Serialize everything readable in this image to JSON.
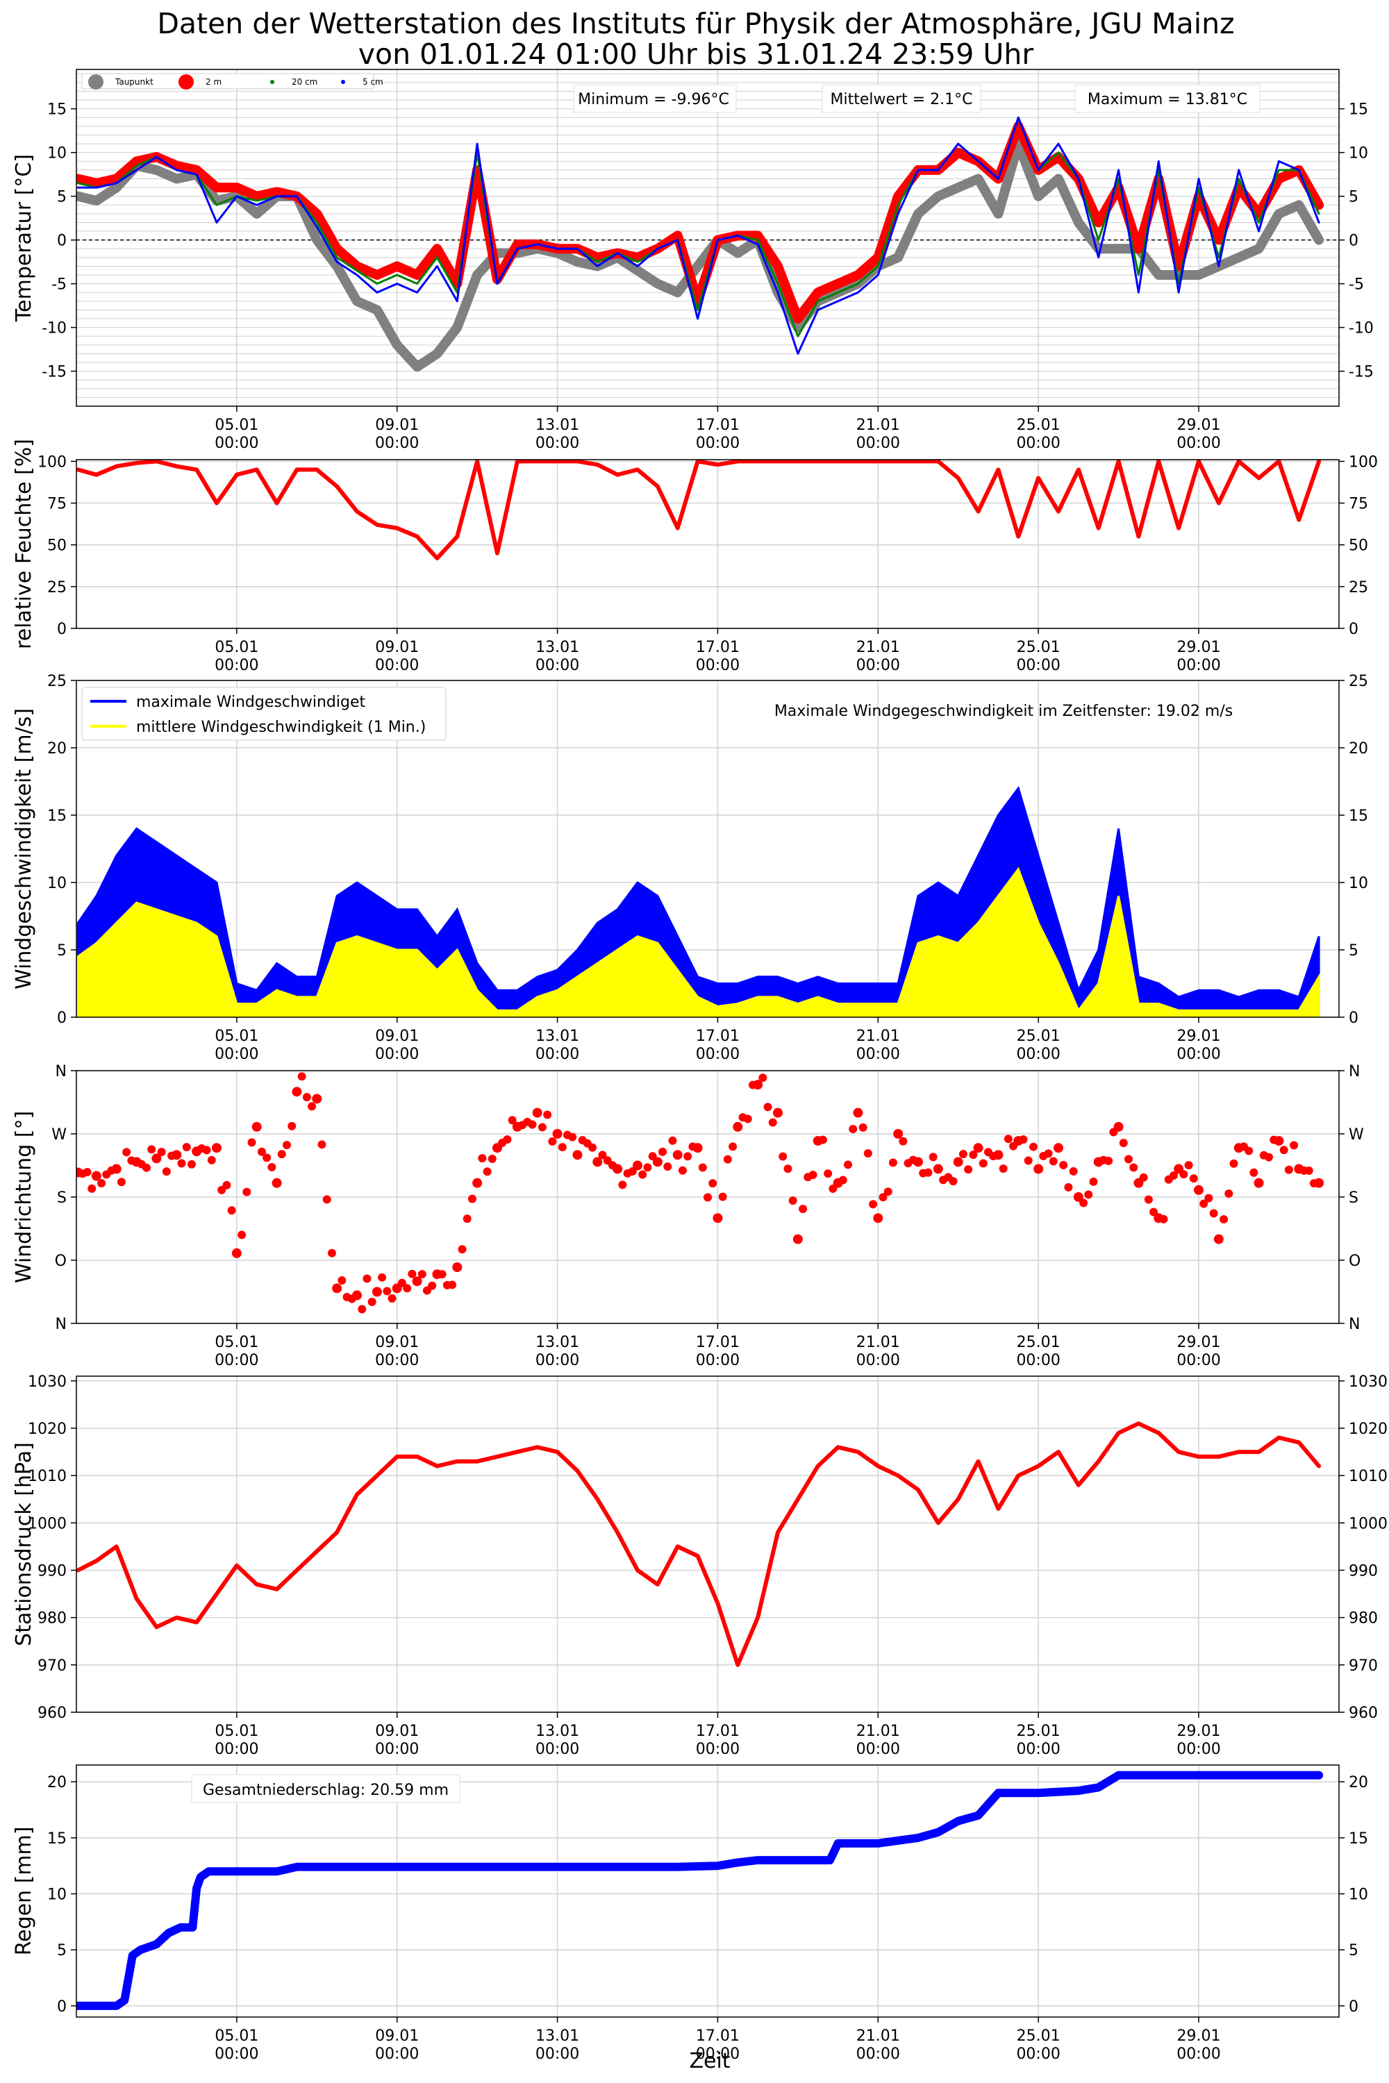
{
  "figure": {
    "title_line1": "Daten der Wetterstation des Instituts für Physik der Atmosphäre, JGU Mainz",
    "title_line2": "von 01.01.24 01:00 Uhr bis 31.01.24 23:59 Uhr",
    "xlabel": "Zeit",
    "x_ticks": [
      {
        "day": 5,
        "date": "05.01",
        "time": "00:00"
      },
      {
        "day": 9,
        "date": "09.01",
        "time": "00:00"
      },
      {
        "day": 13,
        "date": "13.01",
        "time": "00:00"
      },
      {
        "day": 17,
        "date": "17.01",
        "time": "00:00"
      },
      {
        "day": 21,
        "date": "21.01",
        "time": "00:00"
      },
      {
        "day": 25,
        "date": "25.01",
        "time": "00:00"
      },
      {
        "day": 29,
        "date": "29.01",
        "time": "00:00"
      }
    ]
  },
  "chart_data": [
    {
      "id": "temp",
      "type": "line",
      "ylabel": "Temperatur [°C]",
      "ylim": [
        -19,
        19.5
      ],
      "yticks": [
        -15,
        -10,
        -5,
        0,
        5,
        10,
        15
      ],
      "grid": "dense horizontal + vertical",
      "legend": "top-left",
      "legend_entries": [
        "Taupunkt",
        "2 m",
        "20 cm",
        "5 cm"
      ],
      "annotations": {
        "min": "Minimum = -9.96°C",
        "mean": "Mittelwert = 2.1°C",
        "max": "Maximum = 13.81°C"
      },
      "x": [
        1.04,
        1.5,
        2.0,
        2.5,
        3.0,
        3.5,
        4.0,
        4.5,
        5.0,
        5.5,
        6.0,
        6.5,
        7.0,
        7.5,
        8.0,
        8.5,
        9.0,
        9.5,
        10.0,
        10.5,
        11.0,
        11.5,
        12.0,
        12.5,
        13.0,
        13.5,
        14.0,
        14.5,
        15.0,
        15.5,
        16.0,
        16.5,
        17.0,
        17.5,
        18.0,
        18.5,
        19.0,
        19.5,
        20.0,
        20.5,
        21.0,
        21.5,
        22.0,
        22.5,
        23.0,
        23.5,
        24.0,
        24.5,
        25.0,
        25.5,
        26.0,
        26.5,
        27.0,
        27.5,
        28.0,
        28.5,
        29.0,
        29.5,
        30.0,
        30.5,
        31.0,
        31.5,
        32.0
      ],
      "series": [
        {
          "name": "Taupunkt",
          "color": "#808080",
          "values": [
            5,
            4.5,
            6,
            8.5,
            8,
            7,
            7.5,
            4.5,
            5,
            3,
            5,
            5,
            0,
            -3,
            -7,
            -8,
            -12,
            -14.5,
            -13,
            -10,
            -4,
            -1.5,
            -1.5,
            -1,
            -1.5,
            -2.5,
            -3,
            -2,
            -3.5,
            -5,
            -6,
            -3,
            0,
            -1.5,
            0,
            -6,
            -10,
            -7,
            -6,
            -5,
            -3,
            -2,
            3,
            5,
            6,
            7,
            3,
            11,
            5,
            7,
            2,
            -1,
            -1,
            -1,
            -4,
            -4,
            -4,
            -3,
            -2,
            -1,
            3,
            4,
            0
          ]
        },
        {
          "name": "2 m",
          "color": "#ff0000",
          "values": [
            7,
            6.5,
            7,
            9,
            9.5,
            8.5,
            8,
            6,
            6,
            5,
            5.5,
            5,
            3,
            -1,
            -3,
            -4,
            -3,
            -4,
            -1,
            -5,
            8,
            -4.5,
            -0.5,
            -0.5,
            -1,
            -1,
            -2,
            -1.5,
            -2,
            -1,
            0.5,
            -7,
            0,
            0.5,
            0.5,
            -3,
            -9,
            -6,
            -5,
            -4,
            -2,
            5,
            8,
            8,
            10,
            9,
            7,
            13,
            8,
            9.5,
            7,
            2,
            6,
            -1,
            7,
            -3,
            5,
            0,
            6,
            3,
            7,
            8,
            4
          ]
        },
        {
          "name": "20 cm",
          "color": "#008000",
          "values": [
            6.5,
            6,
            6.5,
            8.5,
            9.5,
            8,
            7.5,
            4,
            5,
            4.5,
            5,
            5,
            2,
            -2,
            -3.5,
            -5,
            -4,
            -5,
            -2,
            -6,
            10,
            -5,
            -1,
            -0.5,
            -1,
            -1,
            -2.5,
            -1.5,
            -2.5,
            -1,
            0,
            -8,
            0,
            0.5,
            0,
            -5,
            -11,
            -7,
            -6,
            -5,
            -3,
            4,
            8,
            8,
            11,
            9,
            7,
            14,
            8,
            10,
            7,
            0,
            7,
            -4,
            8,
            -5,
            6,
            -2,
            7,
            2,
            8,
            8,
            3
          ]
        },
        {
          "name": "5 cm",
          "color": "#0000ff",
          "values": [
            6,
            6,
            6.5,
            8,
            9.5,
            8,
            7.5,
            2,
            5,
            4,
            5,
            5,
            1.5,
            -2.5,
            -4,
            -6,
            -5,
            -6,
            -3,
            -7,
            11,
            -5,
            -1,
            -0.5,
            -1,
            -1,
            -3,
            -1.5,
            -3,
            -1,
            0,
            -9,
            0,
            0.5,
            -0.5,
            -6,
            -13,
            -8,
            -7,
            -6,
            -4,
            3,
            8,
            8,
            11,
            9,
            7,
            14,
            8,
            11,
            7,
            -2,
            8,
            -6,
            9,
            -6,
            7,
            -3,
            8,
            1,
            9,
            8,
            2
          ]
        }
      ]
    },
    {
      "id": "humidity",
      "type": "line",
      "ylabel": "relative Feuchte [%]",
      "ylim": [
        0,
        101
      ],
      "yticks": [
        0,
        25,
        50,
        75,
        100
      ],
      "grid": "vertical + horizontal",
      "x": [
        1.04,
        1.5,
        2.0,
        2.5,
        3.0,
        3.5,
        4.0,
        4.5,
        5.0,
        5.5,
        6.0,
        6.5,
        7.0,
        7.5,
        8.0,
        8.5,
        9.0,
        9.5,
        10.0,
        10.5,
        11.0,
        11.5,
        12.0,
        12.5,
        13.0,
        13.5,
        14.0,
        14.5,
        15.0,
        15.5,
        16.0,
        16.5,
        17.0,
        17.5,
        18.0,
        18.5,
        19.0,
        19.5,
        20.0,
        20.5,
        21.0,
        21.5,
        22.0,
        22.5,
        23.0,
        23.5,
        24.0,
        24.5,
        25.0,
        25.5,
        26.0,
        26.5,
        27.0,
        27.5,
        28.0,
        28.5,
        29.0,
        29.5,
        30.0,
        30.5,
        31.0,
        31.5,
        32.0
      ],
      "series": [
        {
          "name": "",
          "color": "#ff0000",
          "values": [
            95,
            92,
            97,
            99,
            100,
            97,
            95,
            75,
            92,
            95,
            75,
            95,
            95,
            85,
            70,
            62,
            60,
            55,
            42,
            55,
            100,
            45,
            100,
            100,
            100,
            100,
            98,
            92,
            95,
            85,
            60,
            100,
            98,
            100,
            100,
            100,
            100,
            100,
            100,
            100,
            100,
            100,
            100,
            100,
            90,
            70,
            95,
            55,
            90,
            70,
            95,
            60,
            100,
            55,
            100,
            60,
            100,
            75,
            100,
            90,
            100,
            65,
            100
          ]
        }
      ]
    },
    {
      "id": "wind_speed",
      "type": "area",
      "ylabel": "Windgeschwindigkeit [m/s]",
      "ylim": [
        0,
        25
      ],
      "yticks": [
        0,
        5,
        10,
        15,
        20,
        25
      ],
      "grid": "vertical + horizontal",
      "legend": "top-left",
      "annotation": "Maximale Windgegeschwindigkeit im Zeitfenster: 19.02 m/s",
      "x": [
        1.04,
        1.5,
        2.0,
        2.5,
        3.0,
        3.5,
        4.0,
        4.5,
        5.0,
        5.5,
        6.0,
        6.5,
        7.0,
        7.5,
        8.0,
        8.5,
        9.0,
        9.5,
        10.0,
        10.5,
        11.0,
        11.5,
        12.0,
        12.5,
        13.0,
        13.5,
        14.0,
        14.5,
        15.0,
        15.5,
        16.0,
        16.5,
        17.0,
        17.5,
        18.0,
        18.5,
        19.0,
        19.5,
        20.0,
        20.5,
        21.0,
        21.5,
        22.0,
        22.5,
        23.0,
        23.5,
        24.0,
        24.5,
        25.0,
        25.5,
        26.0,
        26.5,
        27.0,
        27.5,
        28.0,
        28.5,
        29.0,
        29.5,
        30.0,
        30.5,
        31.0,
        31.5,
        32.0
      ],
      "series": [
        {
          "name": "maximale Windgeschwindiget",
          "color": "#0000ff",
          "values": [
            7,
            9,
            12,
            14,
            13,
            12,
            11,
            10,
            2.5,
            2,
            4,
            3,
            3,
            9,
            10,
            9,
            8,
            8,
            6,
            8,
            4,
            2,
            2,
            3,
            3.5,
            5,
            7,
            8,
            10,
            9,
            6,
            3,
            2.5,
            2.5,
            3,
            3,
            2.5,
            3,
            2.5,
            2.5,
            2.5,
            2.5,
            9,
            10,
            9,
            12,
            15,
            17,
            12,
            7,
            2,
            5,
            14,
            3,
            2.5,
            1.5,
            2,
            2,
            1.5,
            2,
            2,
            1.5,
            6
          ]
        },
        {
          "name": "mittlere Windgeschwindigkeit (1 Min.)",
          "color": "#ffff00",
          "values": [
            4.5,
            5.5,
            7,
            8.5,
            8,
            7.5,
            7,
            6,
            1,
            1,
            2,
            1.5,
            1.5,
            5.5,
            6,
            5.5,
            5,
            5,
            3.5,
            5,
            2,
            0.5,
            0.5,
            1.5,
            2,
            3,
            4,
            5,
            6,
            5.5,
            3.5,
            1.5,
            0.8,
            1,
            1.5,
            1.5,
            1,
            1.5,
            1,
            1,
            1,
            1,
            5.5,
            6,
            5.5,
            7,
            9,
            11,
            7,
            4,
            0.5,
            2.5,
            9,
            1,
            1,
            0.5,
            0.5,
            0.5,
            0.5,
            0.5,
            0.5,
            0.5,
            3
          ]
        }
      ]
    },
    {
      "id": "wind_dir",
      "type": "scatter",
      "ylabel": "Windrichtung [°]",
      "ylim": [
        0,
        360
      ],
      "yticks": [
        0,
        90,
        180,
        270,
        360
      ],
      "ytick_labels": [
        "N",
        "O",
        "S",
        "W",
        "N"
      ],
      "grid": "vertical + horizontal",
      "x": [
        1.04,
        1.5,
        2.0,
        2.5,
        3.0,
        3.5,
        4.0,
        4.5,
        5.0,
        5.5,
        6.0,
        6.5,
        7.0,
        7.5,
        8.0,
        8.5,
        9.0,
        9.5,
        10.0,
        10.5,
        11.0,
        11.5,
        12.0,
        12.5,
        13.0,
        13.5,
        14.0,
        14.5,
        15.0,
        15.5,
        16.0,
        16.5,
        17.0,
        17.5,
        18.0,
        18.5,
        19.0,
        19.5,
        20.0,
        20.5,
        21.0,
        21.5,
        22.0,
        22.5,
        23.0,
        23.5,
        24.0,
        24.5,
        25.0,
        25.5,
        26.0,
        26.5,
        27.0,
        27.5,
        28.0,
        28.5,
        29.0,
        29.5,
        30.0,
        30.5,
        31.0,
        31.5,
        32.0
      ],
      "series": [
        {
          "name": "",
          "color": "#ff0000",
          "values": [
            215,
            210,
            220,
            230,
            235,
            240,
            245,
            250,
            100,
            280,
            200,
            330,
            320,
            50,
            40,
            45,
            50,
            60,
            70,
            80,
            200,
            250,
            280,
            300,
            270,
            240,
            230,
            220,
            225,
            230,
            240,
            250,
            150,
            280,
            340,
            300,
            120,
            260,
            200,
            300,
            150,
            270,
            230,
            220,
            230,
            250,
            240,
            260,
            220,
            250,
            180,
            230,
            280,
            200,
            150,
            220,
            190,
            120,
            250,
            200,
            260,
            220,
            200
          ]
        }
      ]
    },
    {
      "id": "pressure",
      "type": "line",
      "ylabel": "Stationsdruck [hPa]",
      "ylim": [
        960,
        1031
      ],
      "yticks": [
        960,
        970,
        980,
        990,
        1000,
        1010,
        1020,
        1030
      ],
      "grid": "vertical + horizontal",
      "x": [
        1.04,
        1.5,
        2.0,
        2.5,
        3.0,
        3.5,
        4.0,
        4.5,
        5.0,
        5.5,
        6.0,
        6.5,
        7.0,
        7.5,
        8.0,
        8.5,
        9.0,
        9.5,
        10.0,
        10.5,
        11.0,
        11.5,
        12.0,
        12.5,
        13.0,
        13.5,
        14.0,
        14.5,
        15.0,
        15.5,
        16.0,
        16.5,
        17.0,
        17.5,
        18.0,
        18.5,
        19.0,
        19.5,
        20.0,
        20.5,
        21.0,
        21.5,
        22.0,
        22.5,
        23.0,
        23.5,
        24.0,
        24.5,
        25.0,
        25.5,
        26.0,
        26.5,
        27.0,
        27.5,
        28.0,
        28.5,
        29.0,
        29.5,
        30.0,
        30.5,
        31.0,
        31.5,
        32.0
      ],
      "series": [
        {
          "name": "",
          "color": "#ff0000",
          "values": [
            990,
            992,
            995,
            984,
            978,
            980,
            979,
            985,
            991,
            987,
            986,
            990,
            994,
            998,
            1006,
            1010,
            1014,
            1014,
            1012,
            1013,
            1013,
            1014,
            1015,
            1016,
            1015,
            1011,
            1005,
            998,
            990,
            987,
            995,
            993,
            983,
            970,
            980,
            998,
            1005,
            1012,
            1016,
            1015,
            1012,
            1010,
            1007,
            1000,
            1005,
            1013,
            1003,
            1010,
            1012,
            1015,
            1008,
            1013,
            1019,
            1021,
            1019,
            1015,
            1014,
            1014,
            1015,
            1015,
            1018,
            1017,
            1012
          ]
        }
      ]
    },
    {
      "id": "rain",
      "type": "line",
      "ylabel": "Regen [mm]",
      "ylim": [
        -1,
        21.5
      ],
      "yticks": [
        0,
        5,
        10,
        15,
        20
      ],
      "grid": "vertical + horizontal",
      "annotation": "Gesamtniederschlag: 20.59 mm",
      "x": [
        1.04,
        2.0,
        2.2,
        2.4,
        2.6,
        3.0,
        3.3,
        3.6,
        3.9,
        4.0,
        4.1,
        4.3,
        5.0,
        6.0,
        6.5,
        7.0,
        9.0,
        13.0,
        16.0,
        17.0,
        17.5,
        18.0,
        19.0,
        19.8,
        20.0,
        21.0,
        22.0,
        22.5,
        23.0,
        23.5,
        24.0,
        24.5,
        25.0,
        26.0,
        26.5,
        27.0,
        32.0
      ],
      "series": [
        {
          "name": "",
          "color": "#0000ff",
          "values": [
            0,
            0,
            0.5,
            4.5,
            5,
            5.5,
            6.5,
            7,
            7,
            10.5,
            11.5,
            12,
            12,
            12,
            12.4,
            12.4,
            12.4,
            12.4,
            12.4,
            12.5,
            12.8,
            13,
            13,
            13,
            14.5,
            14.5,
            15,
            15.5,
            16.5,
            17,
            19,
            19,
            19,
            19.2,
            19.5,
            20.59,
            20.59
          ]
        }
      ]
    }
  ]
}
